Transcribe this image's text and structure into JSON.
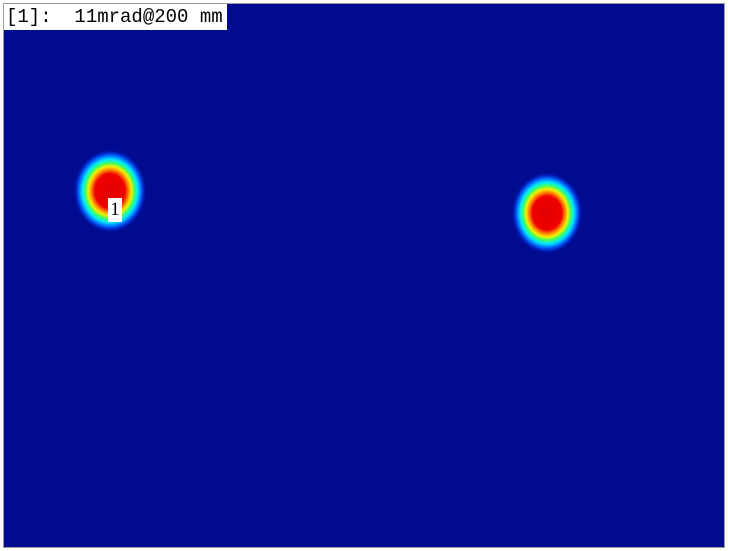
{
  "header": {
    "index": "[1]:",
    "measurement": "11mrad@200 mm"
  },
  "markers": [
    {
      "label": "1"
    }
  ]
}
